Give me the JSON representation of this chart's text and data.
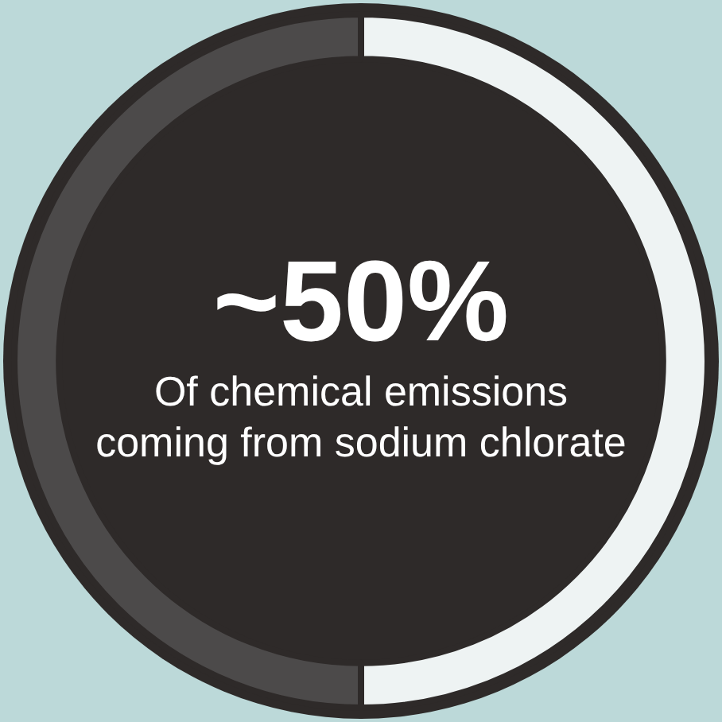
{
  "chart_data": {
    "type": "donut",
    "title": "~50%",
    "subtitle": "Of chemical emissions coming from sodium chlorate",
    "categories": [
      null,
      null
    ],
    "values": [
      50,
      50
    ],
    "colors": [
      "#eef3f3",
      "#4c4a4a"
    ],
    "legend": false
  }
}
